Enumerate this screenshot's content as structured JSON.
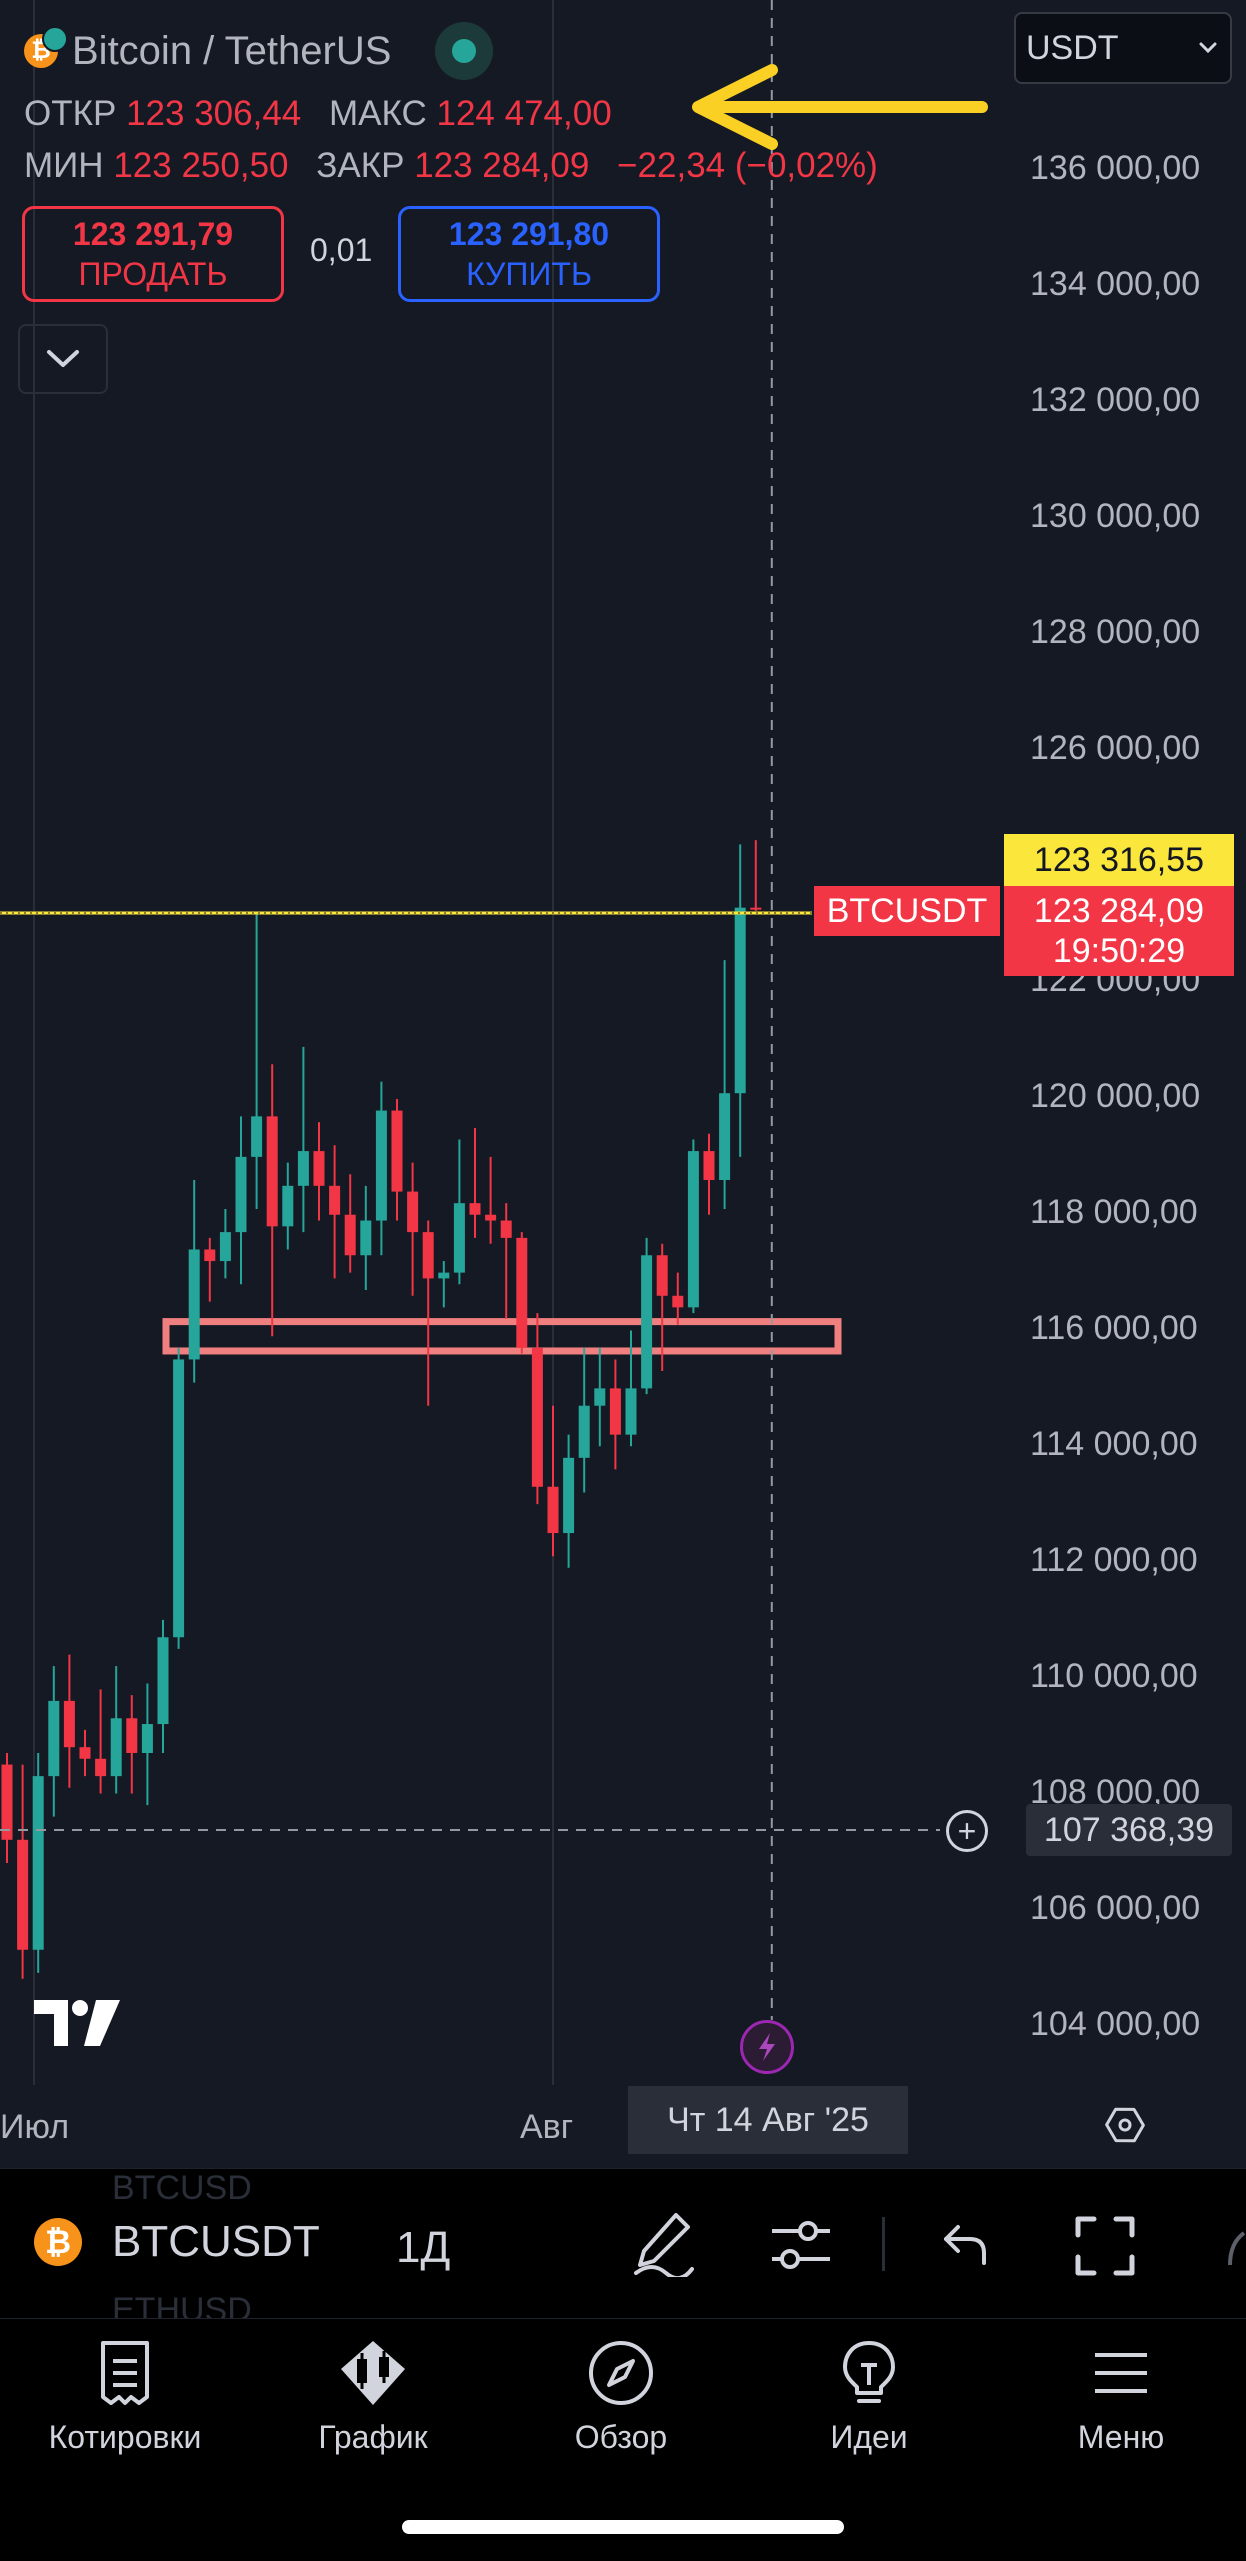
{
  "header": {
    "title": "Bitcoin / TetherUS",
    "ohlc": {
      "open_label": "ОТКР",
      "open": "123 306,44",
      "high_label": "МАКС",
      "high": "124 474,00",
      "low_label": "МИН",
      "low": "123 250,50",
      "close_label": "ЗАКР",
      "close": "123 284,09",
      "change": "−22,34 (−0,02%)"
    },
    "sell": {
      "price": "123 291,79",
      "label": "ПРОДАТЬ"
    },
    "buy": {
      "price": "123 291,80",
      "label": "КУПИТЬ"
    },
    "spread": "0,01",
    "currency": "USDT"
  },
  "price_axis": {
    "labels": [
      "136 000,00",
      "134 000,00",
      "132 000,00",
      "130 000,00",
      "128 000,00",
      "126 000,00",
      "122 000,00",
      "120 000,00",
      "118 000,00",
      "116 000,00",
      "114 000,00",
      "112 000,00",
      "110 000,00",
      "108 000,00",
      "106 000,00",
      "104 000,00"
    ],
    "alert_price": "123 316,55",
    "last_price": "123 284,09",
    "countdown": "19:50:29",
    "symbol_tag": "BTCUSDT",
    "crosshair_price": "107 368,39"
  },
  "time_axis": {
    "jul": "Июл",
    "aug": "Авг",
    "crosshair_date": "Чт 14 Авг '25"
  },
  "toolbar": {
    "symbol": "BTCUSDT",
    "interval": "1Д",
    "ghost_top": "BTCUSD",
    "ghost_bottom": "ETHUSD"
  },
  "nav": {
    "quotes": "Котировки",
    "chart": "График",
    "overview": "Обзор",
    "ideas": "Идеи",
    "menu": "Меню"
  },
  "colors": {
    "up": "#26a69a",
    "down": "#f23645",
    "alert_line": "#fbe73b",
    "zone": "#f08080",
    "arrow": "#fbd024"
  },
  "chart_data": {
    "type": "candlestick",
    "symbol": "BTCUSDT",
    "interval": "1Д",
    "ylim": [
      103200,
      137000
    ],
    "alert_level": 123316.55,
    "support_zone": [
      115750,
      116050
    ],
    "crosshair": 107368.39,
    "candles": [
      {
        "o": 108500,
        "h": 108700,
        "l": 106800,
        "c": 107200
      },
      {
        "o": 107200,
        "h": 108500,
        "l": 104800,
        "c": 105300
      },
      {
        "o": 105300,
        "h": 108700,
        "l": 104900,
        "c": 108300
      },
      {
        "o": 108300,
        "h": 110200,
        "l": 107600,
        "c": 109600
      },
      {
        "o": 109600,
        "h": 110400,
        "l": 108100,
        "c": 108800
      },
      {
        "o": 108800,
        "h": 109100,
        "l": 108300,
        "c": 108600
      },
      {
        "o": 108600,
        "h": 109800,
        "l": 108000,
        "c": 108300
      },
      {
        "o": 108300,
        "h": 110200,
        "l": 108000,
        "c": 109300
      },
      {
        "o": 109300,
        "h": 109700,
        "l": 108000,
        "c": 108700
      },
      {
        "o": 108700,
        "h": 109900,
        "l": 107800,
        "c": 109200
      },
      {
        "o": 109200,
        "h": 111000,
        "l": 108700,
        "c": 110700
      },
      {
        "o": 110700,
        "h": 115700,
        "l": 110500,
        "c": 115500
      },
      {
        "o": 115500,
        "h": 118600,
        "l": 115100,
        "c": 117400
      },
      {
        "o": 117400,
        "h": 117600,
        "l": 116500,
        "c": 117200
      },
      {
        "o": 117200,
        "h": 118100,
        "l": 116900,
        "c": 117700
      },
      {
        "o": 117700,
        "h": 119700,
        "l": 116800,
        "c": 119000
      },
      {
        "o": 119000,
        "h": 123200,
        "l": 118100,
        "c": 119700
      },
      {
        "o": 119700,
        "h": 120600,
        "l": 115900,
        "c": 117800
      },
      {
        "o": 117800,
        "h": 118900,
        "l": 117400,
        "c": 118500
      },
      {
        "o": 118500,
        "h": 120900,
        "l": 117700,
        "c": 119100
      },
      {
        "o": 119100,
        "h": 119600,
        "l": 117900,
        "c": 118500
      },
      {
        "o": 118500,
        "h": 119200,
        "l": 116900,
        "c": 118000
      },
      {
        "o": 118000,
        "h": 118700,
        "l": 117000,
        "c": 117300
      },
      {
        "o": 117300,
        "h": 118500,
        "l": 116700,
        "c": 117900
      },
      {
        "o": 117900,
        "h": 120300,
        "l": 117300,
        "c": 119800
      },
      {
        "o": 119800,
        "h": 120000,
        "l": 117900,
        "c": 118400
      },
      {
        "o": 118400,
        "h": 118900,
        "l": 116600,
        "c": 117700
      },
      {
        "o": 117700,
        "h": 117900,
        "l": 114700,
        "c": 116900
      },
      {
        "o": 116900,
        "h": 117200,
        "l": 116400,
        "c": 117000
      },
      {
        "o": 117000,
        "h": 119300,
        "l": 116800,
        "c": 118200
      },
      {
        "o": 118200,
        "h": 119500,
        "l": 117600,
        "c": 118000
      },
      {
        "o": 118000,
        "h": 119000,
        "l": 117500,
        "c": 117900
      },
      {
        "o": 117900,
        "h": 118200,
        "l": 116200,
        "c": 117600
      },
      {
        "o": 117600,
        "h": 117700,
        "l": 115600,
        "c": 115700
      },
      {
        "o": 115700,
        "h": 116300,
        "l": 113000,
        "c": 113300
      },
      {
        "o": 113300,
        "h": 114700,
        "l": 112100,
        "c": 112500
      },
      {
        "o": 112500,
        "h": 114200,
        "l": 111900,
        "c": 113800
      },
      {
        "o": 113800,
        "h": 115700,
        "l": 113200,
        "c": 114700
      },
      {
        "o": 114700,
        "h": 115700,
        "l": 114000,
        "c": 115000
      },
      {
        "o": 115000,
        "h": 115500,
        "l": 113600,
        "c": 114200
      },
      {
        "o": 114200,
        "h": 116000,
        "l": 114000,
        "c": 115000
      },
      {
        "o": 115000,
        "h": 117600,
        "l": 114900,
        "c": 117300
      },
      {
        "o": 117300,
        "h": 117500,
        "l": 115300,
        "c": 116600
      },
      {
        "o": 116600,
        "h": 117000,
        "l": 116100,
        "c": 116400
      },
      {
        "o": 116400,
        "h": 119300,
        "l": 116300,
        "c": 119100
      },
      {
        "o": 119100,
        "h": 119400,
        "l": 118000,
        "c": 118600
      },
      {
        "o": 118600,
        "h": 122400,
        "l": 118100,
        "c": 120100
      },
      {
        "o": 120100,
        "h": 124400,
        "l": 119000,
        "c": 123306
      },
      {
        "o": 123306,
        "h": 124474,
        "l": 123250,
        "c": 123284
      }
    ]
  }
}
